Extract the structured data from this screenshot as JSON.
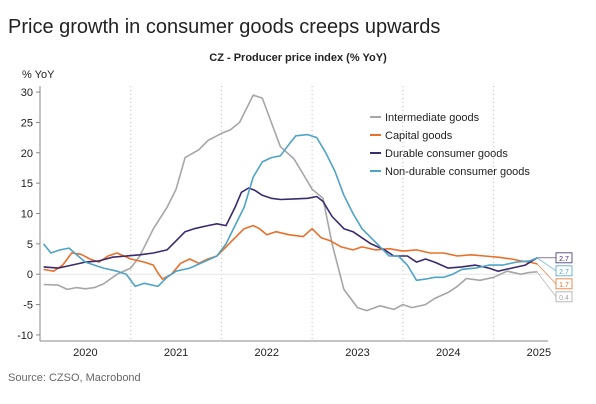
{
  "headline": "Price growth in consumer goods creeps upwards",
  "source": "Source: CZSO, Macrobond",
  "chart_data": {
    "type": "line",
    "title": "CZ - Producer price index (% YoY)",
    "ylabel": "% YoY",
    "xlabel": "",
    "ylim": [
      -11,
      31
    ],
    "yticks": [
      30,
      25,
      20,
      15,
      10,
      5,
      0,
      -5,
      -10
    ],
    "xlim": [
      2019.5,
      2025.1
    ],
    "xticks": [
      {
        "label": "2020",
        "x": 2020.0
      },
      {
        "label": "2021",
        "x": 2021.0
      },
      {
        "label": "2022",
        "x": 2022.0
      },
      {
        "label": "2023",
        "x": 2023.0
      },
      {
        "label": "2024",
        "x": 2024.0
      },
      {
        "label": "2025",
        "x": 2025.0
      }
    ],
    "grid": "vertical dotted at year boundaries",
    "legend": "top-right",
    "series": [
      {
        "name": "Intermediate goods",
        "color": "#a6a6a6",
        "end_label": "0.4",
        "points": [
          [
            2019.54,
            -1.7
          ],
          [
            2019.7,
            -1.8
          ],
          [
            2019.8,
            -2.5
          ],
          [
            2019.9,
            -2.2
          ],
          [
            2020.0,
            -2.4
          ],
          [
            2020.1,
            -2.2
          ],
          [
            2020.2,
            -1.6
          ],
          [
            2020.35,
            0.0
          ],
          [
            2020.5,
            1.0
          ],
          [
            2020.6,
            3.0
          ],
          [
            2020.75,
            7.5
          ],
          [
            2020.9,
            11.0
          ],
          [
            2021.0,
            14.0
          ],
          [
            2021.1,
            19.2
          ],
          [
            2021.25,
            20.5
          ],
          [
            2021.35,
            22.0
          ],
          [
            2021.5,
            23.2
          ],
          [
            2021.6,
            23.8
          ],
          [
            2021.7,
            25.0
          ],
          [
            2021.85,
            29.5
          ],
          [
            2021.95,
            29.0
          ],
          [
            2022.05,
            25.0
          ],
          [
            2022.15,
            21.0
          ],
          [
            2022.3,
            19.0
          ],
          [
            2022.4,
            16.5
          ],
          [
            2022.5,
            14.0
          ],
          [
            2022.62,
            12.5
          ],
          [
            2022.72,
            5.0
          ],
          [
            2022.85,
            -2.5
          ],
          [
            2023.0,
            -5.5
          ],
          [
            2023.1,
            -6.0
          ],
          [
            2023.25,
            -5.2
          ],
          [
            2023.4,
            -5.8
          ],
          [
            2023.5,
            -5.0
          ],
          [
            2023.6,
            -5.5
          ],
          [
            2023.75,
            -5.0
          ],
          [
            2023.85,
            -4.0
          ],
          [
            2024.0,
            -3.0
          ],
          [
            2024.1,
            -2.0
          ],
          [
            2024.2,
            -0.7
          ],
          [
            2024.35,
            -1.0
          ],
          [
            2024.5,
            -0.5
          ],
          [
            2024.65,
            0.5
          ],
          [
            2024.8,
            0.0
          ],
          [
            2024.9,
            0.3
          ],
          [
            2024.98,
            0.4
          ]
        ]
      },
      {
        "name": "Capital goods",
        "color": "#e8702a",
        "end_label": "1.7",
        "points": [
          [
            2019.54,
            0.8
          ],
          [
            2019.65,
            0.5
          ],
          [
            2019.75,
            1.5
          ],
          [
            2019.85,
            3.5
          ],
          [
            2019.95,
            3.3
          ],
          [
            2020.05,
            2.5
          ],
          [
            2020.15,
            2.0
          ],
          [
            2020.25,
            3.0
          ],
          [
            2020.35,
            3.5
          ],
          [
            2020.5,
            2.5
          ],
          [
            2020.65,
            2.0
          ],
          [
            2020.75,
            1.5
          ],
          [
            2020.8,
            0.2
          ],
          [
            2020.85,
            -0.8
          ],
          [
            2020.95,
            0.0
          ],
          [
            2021.05,
            1.8
          ],
          [
            2021.15,
            2.5
          ],
          [
            2021.25,
            1.8
          ],
          [
            2021.35,
            2.5
          ],
          [
            2021.45,
            3.0
          ],
          [
            2021.55,
            4.5
          ],
          [
            2021.65,
            6.0
          ],
          [
            2021.75,
            7.5
          ],
          [
            2021.85,
            8.0
          ],
          [
            2021.92,
            7.5
          ],
          [
            2022.0,
            6.5
          ],
          [
            2022.1,
            7.0
          ],
          [
            2022.25,
            6.5
          ],
          [
            2022.4,
            6.2
          ],
          [
            2022.5,
            7.5
          ],
          [
            2022.6,
            6.0
          ],
          [
            2022.7,
            5.5
          ],
          [
            2022.82,
            4.5
          ],
          [
            2022.95,
            4.0
          ],
          [
            2023.05,
            4.5
          ],
          [
            2023.2,
            4.0
          ],
          [
            2023.35,
            4.2
          ],
          [
            2023.5,
            3.8
          ],
          [
            2023.65,
            4.0
          ],
          [
            2023.8,
            3.5
          ],
          [
            2023.95,
            3.5
          ],
          [
            2024.1,
            3.0
          ],
          [
            2024.25,
            3.2
          ],
          [
            2024.4,
            3.0
          ],
          [
            2024.55,
            2.8
          ],
          [
            2024.7,
            2.5
          ],
          [
            2024.8,
            2.2
          ],
          [
            2024.9,
            2.0
          ],
          [
            2024.98,
            1.7
          ]
        ]
      },
      {
        "name": "Durable consumer goods",
        "color": "#3b2a6e",
        "end_label": "2.7",
        "points": [
          [
            2019.54,
            1.2
          ],
          [
            2019.7,
            1.0
          ],
          [
            2019.85,
            1.5
          ],
          [
            2020.0,
            2.0
          ],
          [
            2020.15,
            2.2
          ],
          [
            2020.3,
            2.8
          ],
          [
            2020.45,
            3.0
          ],
          [
            2020.6,
            3.2
          ],
          [
            2020.75,
            3.5
          ],
          [
            2020.9,
            4.0
          ],
          [
            2021.0,
            5.5
          ],
          [
            2021.1,
            7.0
          ],
          [
            2021.2,
            7.5
          ],
          [
            2021.35,
            8.0
          ],
          [
            2021.45,
            8.3
          ],
          [
            2021.55,
            8.0
          ],
          [
            2021.65,
            11.0
          ],
          [
            2021.72,
            13.5
          ],
          [
            2021.8,
            14.2
          ],
          [
            2021.87,
            13.8
          ],
          [
            2021.95,
            13.0
          ],
          [
            2022.05,
            12.5
          ],
          [
            2022.15,
            12.3
          ],
          [
            2022.3,
            12.4
          ],
          [
            2022.45,
            12.5
          ],
          [
            2022.55,
            12.8
          ],
          [
            2022.62,
            12.0
          ],
          [
            2022.72,
            9.5
          ],
          [
            2022.85,
            7.5
          ],
          [
            2022.95,
            7.0
          ],
          [
            2023.05,
            6.0
          ],
          [
            2023.15,
            5.0
          ],
          [
            2023.3,
            4.0
          ],
          [
            2023.4,
            3.0
          ],
          [
            2023.55,
            3.0
          ],
          [
            2023.65,
            2.0
          ],
          [
            2023.75,
            2.5
          ],
          [
            2023.85,
            2.0
          ],
          [
            2024.0,
            1.0
          ],
          [
            2024.15,
            1.2
          ],
          [
            2024.3,
            1.5
          ],
          [
            2024.45,
            1.0
          ],
          [
            2024.55,
            0.5
          ],
          [
            2024.7,
            1.0
          ],
          [
            2024.85,
            1.5
          ],
          [
            2024.98,
            2.7
          ]
        ]
      },
      {
        "name": "Non-durable consumer goods",
        "color": "#4fa3c6",
        "end_label": "2.7",
        "points": [
          [
            2019.54,
            5.0
          ],
          [
            2019.62,
            3.5
          ],
          [
            2019.72,
            4.0
          ],
          [
            2019.82,
            4.3
          ],
          [
            2019.92,
            3.0
          ],
          [
            2020.0,
            2.0
          ],
          [
            2020.1,
            1.5
          ],
          [
            2020.2,
            1.0
          ],
          [
            2020.35,
            0.5
          ],
          [
            2020.45,
            0.0
          ],
          [
            2020.55,
            -2.0
          ],
          [
            2020.65,
            -1.5
          ],
          [
            2020.8,
            -2.0
          ],
          [
            2020.9,
            -0.5
          ],
          [
            2021.0,
            0.5
          ],
          [
            2021.15,
            1.0
          ],
          [
            2021.3,
            2.0
          ],
          [
            2021.45,
            3.0
          ],
          [
            2021.55,
            5.0
          ],
          [
            2021.65,
            8.0
          ],
          [
            2021.75,
            11.0
          ],
          [
            2021.85,
            16.0
          ],
          [
            2021.95,
            18.5
          ],
          [
            2022.05,
            19.2
          ],
          [
            2022.15,
            19.5
          ],
          [
            2022.25,
            21.5
          ],
          [
            2022.32,
            22.8
          ],
          [
            2022.45,
            23.0
          ],
          [
            2022.55,
            22.5
          ],
          [
            2022.65,
            20.0
          ],
          [
            2022.75,
            17.0
          ],
          [
            2022.85,
            13.0
          ],
          [
            2022.95,
            10.0
          ],
          [
            2023.05,
            7.5
          ],
          [
            2023.15,
            6.0
          ],
          [
            2023.25,
            4.5
          ],
          [
            2023.35,
            3.0
          ],
          [
            2023.45,
            3.0
          ],
          [
            2023.55,
            1.5
          ],
          [
            2023.65,
            -1.0
          ],
          [
            2023.75,
            -0.8
          ],
          [
            2023.85,
            -0.5
          ],
          [
            2023.95,
            -0.5
          ],
          [
            2024.05,
            0.0
          ],
          [
            2024.15,
            0.8
          ],
          [
            2024.3,
            1.0
          ],
          [
            2024.45,
            1.5
          ],
          [
            2024.6,
            1.5
          ],
          [
            2024.75,
            2.0
          ],
          [
            2024.9,
            2.2
          ],
          [
            2024.98,
            2.7
          ]
        ]
      }
    ]
  }
}
